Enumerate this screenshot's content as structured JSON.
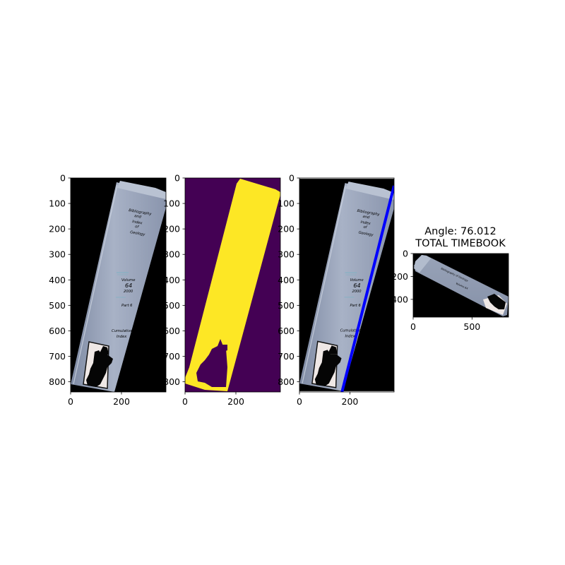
{
  "chart_data": [
    {
      "type": "image",
      "xlim": [
        0,
        375
      ],
      "ylim": [
        840,
        0
      ],
      "xticks": [
        0,
        200
      ],
      "yticks": [
        0,
        100,
        200,
        300,
        400,
        500,
        600,
        700,
        800
      ],
      "xtick_labels": [
        "0",
        "200"
      ],
      "ytick_labels": [
        "0",
        "100",
        "200",
        "300",
        "400",
        "500",
        "600",
        "700",
        "800"
      ],
      "content": "photo of a book spine on black background",
      "spine_text": [
        "Bibliography",
        "and",
        "Index",
        "of",
        "Geology",
        "Volume",
        "64",
        "2000",
        "Part 6",
        "Cumulative",
        "Index"
      ]
    },
    {
      "type": "image",
      "xlim": [
        0,
        375
      ],
      "ylim": [
        840,
        0
      ],
      "xticks": [
        0,
        200
      ],
      "yticks": [
        0,
        100,
        200,
        300,
        400,
        500,
        600,
        700,
        800
      ],
      "xtick_labels": [
        "0",
        "200"
      ],
      "ytick_labels": [
        "0",
        "100",
        "200",
        "300",
        "400",
        "500",
        "600",
        "700",
        "800"
      ],
      "content": "segmentation mask",
      "colors": {
        "background": "#440154",
        "mask": "#fde725"
      }
    },
    {
      "type": "image",
      "xlim": [
        0,
        375
      ],
      "ylim": [
        840,
        0
      ],
      "xticks": [
        0,
        200
      ],
      "yticks": [
        0,
        100,
        200,
        300,
        400,
        500,
        600,
        700,
        800
      ],
      "xtick_labels": [
        "0",
        "200"
      ],
      "ytick_labels": [
        "0",
        "100",
        "200",
        "300",
        "400",
        "500",
        "600",
        "700",
        "800"
      ],
      "content": "photo with fitted edge line",
      "colors": {
        "line": "#0000ff"
      }
    },
    {
      "type": "image",
      "title": "Angle: 76.012\nTOTAL TIMEBOOK",
      "title_lines": [
        "Angle: 76.012",
        "TOTAL TIMEBOOK"
      ],
      "angle": 76.012,
      "xlim": [
        0,
        810
      ],
      "ylim": [
        555,
        0
      ],
      "xticks": [
        0,
        500
      ],
      "yticks": [
        0,
        200,
        400
      ],
      "xtick_labels": [
        "0",
        "500"
      ],
      "ytick_labels": [
        "0",
        "200",
        "400"
      ],
      "content": "rotated crop of the book spine"
    }
  ]
}
